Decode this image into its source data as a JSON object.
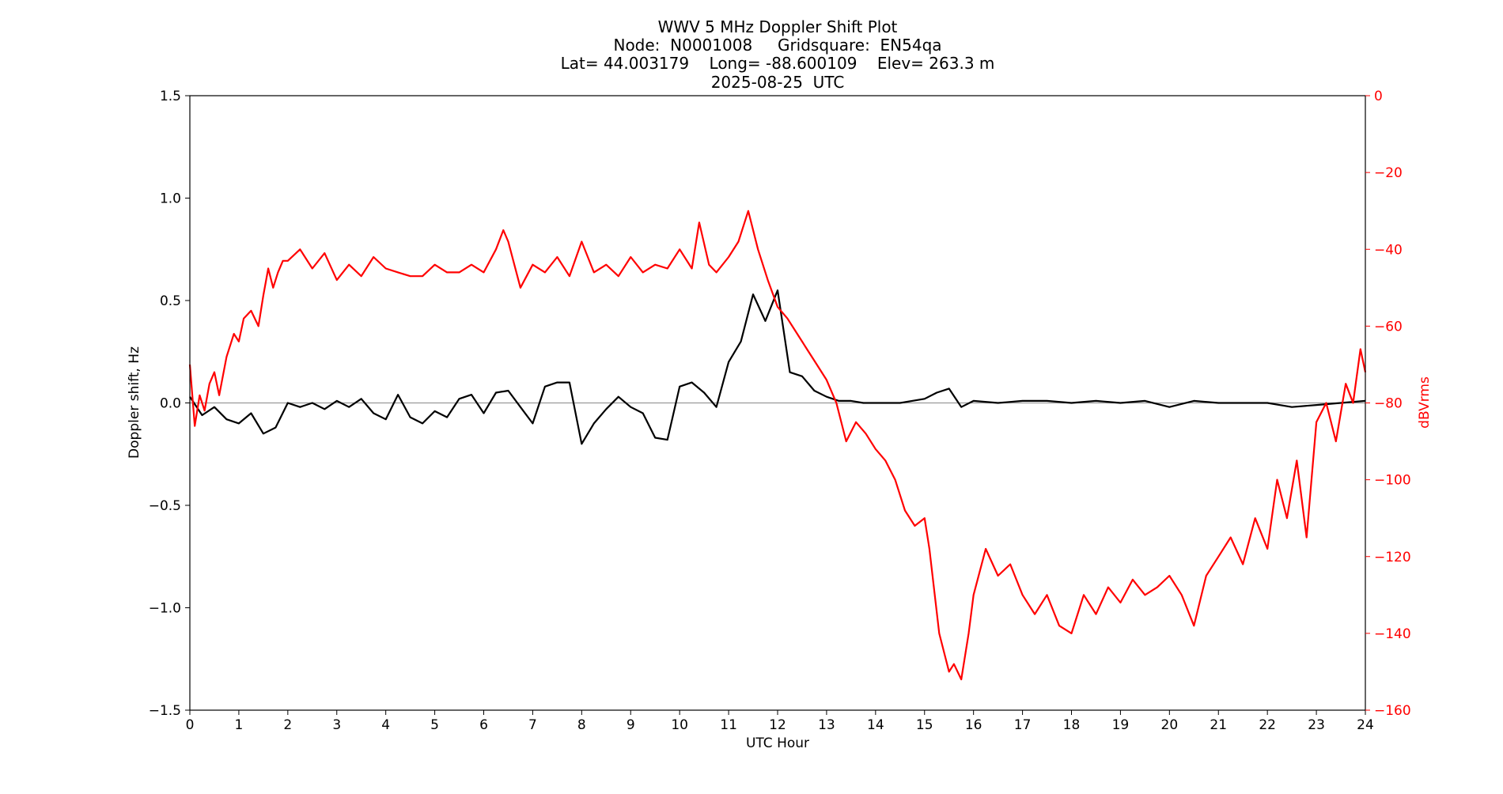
{
  "chart_data": {
    "type": "line",
    "title_lines": [
      "WWV 5 MHz Doppler Shift Plot",
      "Node:  N0001008     Gridsquare:  EN54qa",
      "Lat= 44.003179    Long= -88.600109    Elev= 263.3 m",
      "2025-08-25  UTC"
    ],
    "xlabel": "UTC Hour",
    "ylabel_left": "Doppler shift, Hz",
    "ylabel_right": "dBVrms",
    "xlim": [
      0,
      24
    ],
    "ylim_left": [
      -1.5,
      1.5
    ],
    "ylim_right": [
      -160,
      0
    ],
    "x_ticks": [
      "0",
      "1",
      "2",
      "3",
      "4",
      "5",
      "6",
      "7",
      "8",
      "9",
      "10",
      "11",
      "12",
      "13",
      "14",
      "15",
      "16",
      "17",
      "18",
      "19",
      "20",
      "21",
      "22",
      "23",
      "24"
    ],
    "y_ticks_left": [
      "1.5",
      "1.0",
      "0.5",
      "0.0",
      "−0.5",
      "−1.0",
      "−1.5"
    ],
    "y_ticks_right": [
      "0",
      "−20",
      "−40",
      "−60",
      "−80",
      "−100",
      "−120",
      "−140",
      "−160"
    ],
    "zero_line": 0,
    "colors": {
      "doppler": "#000000",
      "power": "#ff0000",
      "zero_line": "#999999",
      "right_axis": "#ff0000"
    },
    "series": [
      {
        "axis": "left",
        "color": "#000000",
        "x": [
          0,
          0.25,
          0.5,
          0.75,
          1,
          1.25,
          1.5,
          1.75,
          2,
          2.25,
          2.5,
          2.75,
          3,
          3.25,
          3.5,
          3.75,
          4,
          4.25,
          4.5,
          4.75,
          5,
          5.25,
          5.5,
          5.75,
          6,
          6.25,
          6.5,
          6.75,
          7,
          7.25,
          7.5,
          7.75,
          8,
          8.25,
          8.5,
          8.75,
          9,
          9.25,
          9.5,
          9.75,
          10,
          10.25,
          10.5,
          10.75,
          11,
          11.25,
          11.5,
          11.75,
          12,
          12.25,
          12.5,
          12.75,
          13,
          13.25,
          13.5,
          13.75,
          14,
          14.5,
          15,
          15.25,
          15.5,
          15.75,
          16,
          16.5,
          17,
          17.5,
          18,
          18.5,
          19,
          19.5,
          20,
          20.5,
          21,
          21.5,
          22,
          22.5,
          23,
          23.5,
          24
        ],
        "values": [
          0.03,
          -0.06,
          -0.02,
          -0.08,
          -0.1,
          -0.05,
          -0.15,
          -0.12,
          0,
          -0.02,
          0,
          -0.03,
          0.01,
          -0.02,
          0.02,
          -0.05,
          -0.08,
          0.04,
          -0.07,
          -0.1,
          -0.04,
          -0.07,
          0.02,
          0.04,
          -0.05,
          0.05,
          0.06,
          -0.02,
          -0.1,
          0.08,
          0.1,
          0.1,
          -0.2,
          -0.1,
          -0.03,
          0.03,
          -0.02,
          -0.05,
          -0.17,
          -0.18,
          0.08,
          0.1,
          0.05,
          -0.02,
          0.2,
          0.3,
          0.53,
          0.4,
          0.55,
          0.15,
          0.13,
          0.06,
          0.03,
          0.01,
          0.01,
          0,
          0,
          0,
          0.02,
          0.05,
          0.07,
          -0.02,
          0.01,
          0,
          0.01,
          0.01,
          0,
          0.01,
          0,
          0.01,
          -0.02,
          0.01,
          0,
          0,
          0,
          -0.02,
          -0.01,
          0,
          0.01
        ]
      },
      {
        "axis": "right",
        "color": "#ff0000",
        "x": [
          0,
          0.1,
          0.2,
          0.3,
          0.4,
          0.5,
          0.6,
          0.75,
          0.9,
          1,
          1.1,
          1.25,
          1.4,
          1.5,
          1.6,
          1.7,
          1.8,
          1.9,
          2,
          2.25,
          2.5,
          2.75,
          3,
          3.25,
          3.5,
          3.75,
          4,
          4.25,
          4.5,
          4.75,
          5,
          5.25,
          5.5,
          5.75,
          6,
          6.25,
          6.4,
          6.5,
          6.75,
          7,
          7.25,
          7.5,
          7.75,
          8,
          8.25,
          8.5,
          8.75,
          9,
          9.25,
          9.5,
          9.75,
          10,
          10.25,
          10.4,
          10.6,
          10.75,
          11,
          11.2,
          11.4,
          11.6,
          11.8,
          12,
          12.2,
          12.4,
          12.6,
          12.8,
          13,
          13.2,
          13.4,
          13.6,
          13.8,
          14,
          14.2,
          14.4,
          14.6,
          14.8,
          15,
          15.1,
          15.3,
          15.5,
          15.6,
          15.75,
          15.9,
          16,
          16.25,
          16.5,
          16.75,
          17,
          17.25,
          17.5,
          17.75,
          18,
          18.25,
          18.5,
          18.75,
          19,
          19.25,
          19.5,
          19.75,
          20,
          20.25,
          20.5,
          20.75,
          21,
          21.25,
          21.5,
          21.75,
          22,
          22.2,
          22.4,
          22.6,
          22.8,
          23,
          23.2,
          23.4,
          23.6,
          23.75,
          23.9,
          24
        ],
        "values": [
          -70,
          -86,
          -78,
          -82,
          -75,
          -72,
          -78,
          -68,
          -62,
          -64,
          -58,
          -56,
          -60,
          -52,
          -45,
          -50,
          -46,
          -43,
          -43,
          -40,
          -45,
          -41,
          -48,
          -44,
          -47,
          -42,
          -45,
          -46,
          -47,
          -47,
          -44,
          -46,
          -46,
          -44,
          -46,
          -40,
          -35,
          -38,
          -50,
          -44,
          -46,
          -42,
          -47,
          -38,
          -46,
          -44,
          -47,
          -42,
          -46,
          -44,
          -45,
          -40,
          -45,
          -33,
          -44,
          -46,
          -42,
          -38,
          -30,
          -40,
          -48,
          -55,
          -58,
          -62,
          -66,
          -70,
          -74,
          -80,
          -90,
          -85,
          -88,
          -92,
          -95,
          -100,
          -108,
          -112,
          -110,
          -118,
          -140,
          -150,
          -148,
          -152,
          -140,
          -130,
          -118,
          -125,
          -122,
          -130,
          -135,
          -130,
          -138,
          -140,
          -130,
          -135,
          -128,
          -132,
          -126,
          -130,
          -128,
          -125,
          -130,
          -138,
          -125,
          -120,
          -115,
          -122,
          -110,
          -118,
          -100,
          -110,
          -95,
          -115,
          -85,
          -80,
          -90,
          -75,
          -80,
          -66,
          -72
        ]
      }
    ]
  }
}
